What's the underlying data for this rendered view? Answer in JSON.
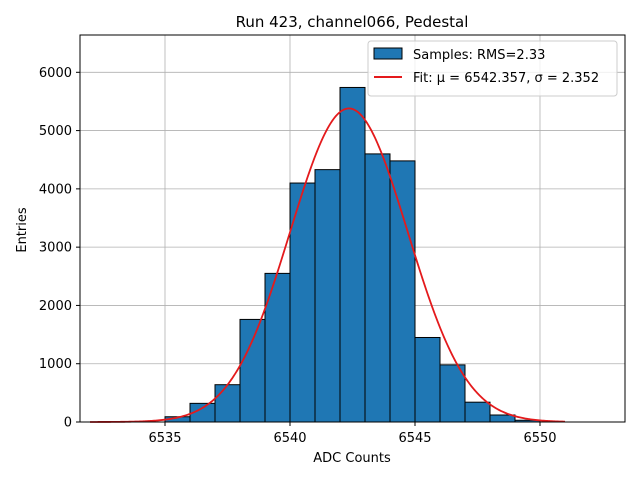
{
  "chart_data": {
    "type": "bar",
    "title": "Run 423, channel066, Pedestal",
    "xlabel": "ADC Counts",
    "ylabel": "Entries",
    "xlim": [
      6531.6,
      6553.4
    ],
    "ylim": [
      0,
      6640
    ],
    "xticks": [
      6535,
      6540,
      6545,
      6550
    ],
    "yticks": [
      0,
      1000,
      2000,
      3000,
      4000,
      5000,
      6000
    ],
    "grid": true,
    "legend_position": "top-right",
    "histogram": {
      "name": "Samples: RMS=2.33",
      "color": "#1f77b4",
      "bin_edges": [
        6535,
        6536,
        6537,
        6538,
        6539,
        6540,
        6541,
        6542,
        6543,
        6544,
        6545,
        6546,
        6547,
        6548,
        6549,
        6550
      ],
      "counts": [
        90,
        320,
        640,
        1760,
        2550,
        4100,
        4330,
        5740,
        4600,
        4480,
        1450,
        980,
        340,
        120,
        30
      ]
    },
    "fit": {
      "name_prefix": "Fit: ",
      "name_math": "μ = 6542.357, σ = 2.352",
      "color": "#e41a1c",
      "mu": 6542.357,
      "sigma": 2.352,
      "amplitude": 5380,
      "x_range": [
        6532,
        6551
      ]
    }
  }
}
